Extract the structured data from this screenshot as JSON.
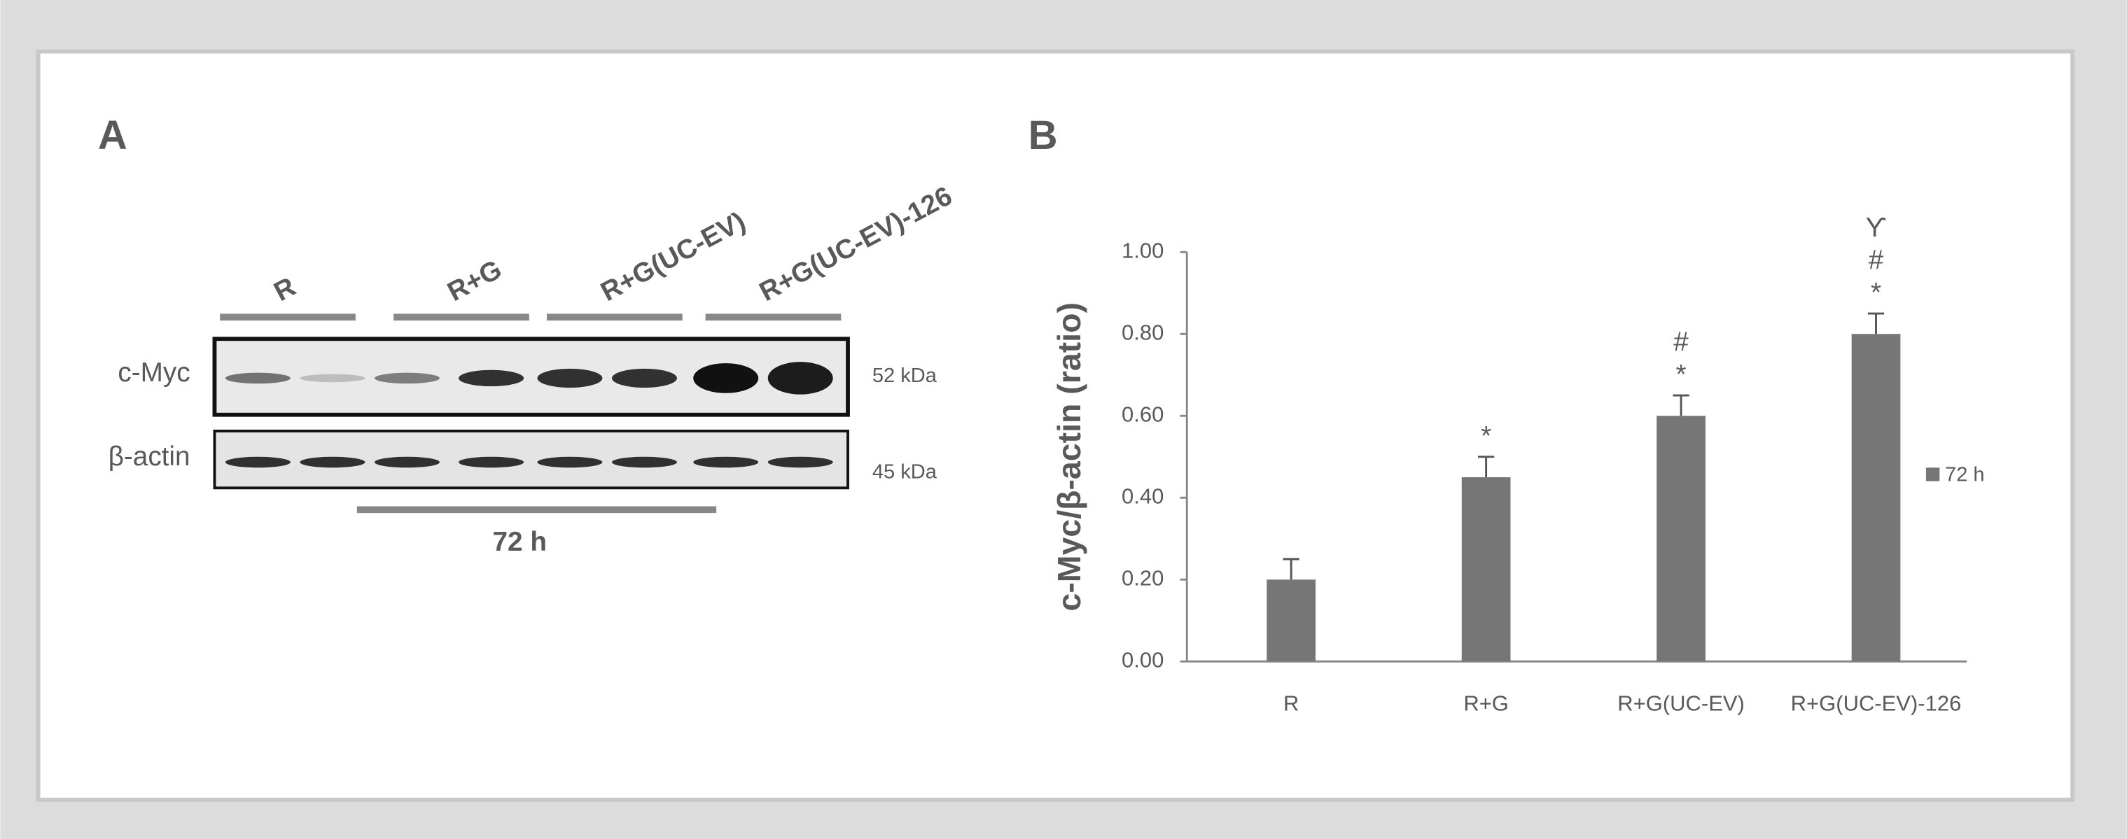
{
  "panel_a": {
    "label": "A",
    "groups": [
      "R",
      "R+G",
      "R+G(UC-EV)",
      "R+G(UC-EV)-126"
    ],
    "rows": [
      "c-Myc",
      "β-actin"
    ],
    "sizes": [
      "52 kDa",
      "45 kDa"
    ],
    "time": "72 h"
  },
  "chart_data": {
    "type": "bar",
    "panel": "B",
    "y_label": "c-Myc/β-actin (ratio)",
    "categories": [
      "R",
      "R+G",
      "R+G(UC-EV)",
      "R+G(UC-EV)-126"
    ],
    "series": [
      {
        "name": "72 h",
        "color": "#767676",
        "values": [
          0.2,
          0.45,
          0.6,
          0.8
        ],
        "errors": [
          0.05,
          0.05,
          0.05,
          0.05
        ]
      }
    ],
    "significance": [
      [],
      [
        "*"
      ],
      [
        "*",
        "#"
      ],
      [
        "*",
        "#",
        "ϒ"
      ]
    ],
    "ylim": [
      0,
      1
    ],
    "yticks": [
      {
        "value": 0,
        "label": "0.00"
      },
      {
        "value": 0.2,
        "label": "0.20"
      },
      {
        "value": 0.4,
        "label": "0.40"
      },
      {
        "value": 0.6,
        "label": "0.60"
      },
      {
        "value": 0.8,
        "label": "0.80"
      },
      {
        "value": 1,
        "label": "1.00"
      }
    ],
    "legend": "right"
  }
}
